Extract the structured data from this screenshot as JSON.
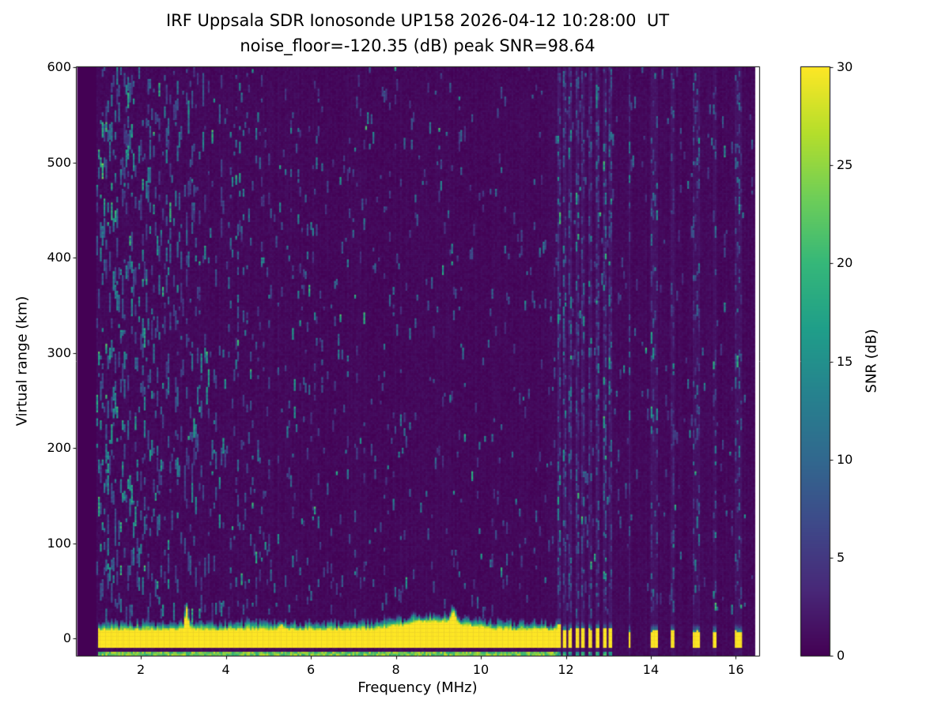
{
  "chart_data": {
    "type": "heatmap",
    "title": "IRF Uppsala SDR Ionosonde UP158 2026-04-12 10:28:00  UT",
    "subtitle": "noise_floor=-120.35 (dB) peak SNR=98.64",
    "station": "IRF Uppsala SDR Ionosonde UP158",
    "timestamp_ut": "2026-04-12 10:28:00",
    "noise_floor_db": -120.35,
    "peak_snr_db": 98.64,
    "xlabel": "Frequency (MHz)",
    "ylabel": "Virtual range (km)",
    "xlim": [
      0.49,
      16.55
    ],
    "ylim": [
      -18,
      600
    ],
    "xticks": [
      2,
      4,
      6,
      8,
      10,
      12,
      14,
      16
    ],
    "yticks": [
      0,
      100,
      200,
      300,
      400,
      500,
      600
    ],
    "grid": false,
    "colorbar": {
      "label": "SNR (dB)",
      "range": [
        0,
        30
      ],
      "ticks": [
        0,
        5,
        10,
        15,
        20,
        25,
        30
      ],
      "colormap": "viridis",
      "colors": [
        "#440154",
        "#482878",
        "#3e4989",
        "#31688e",
        "#26828e",
        "#1f9e89",
        "#35b779",
        "#6ece58",
        "#b5de2b",
        "#fde725"
      ]
    },
    "heatmap": {
      "grid": {
        "nx": 360,
        "ny": 300
      },
      "data_extent_mhz": [
        0.5,
        16.45
      ],
      "noise_extent_mhz": [
        0.95,
        16.45
      ],
      "background_snr_db": [
        0,
        1.5
      ],
      "ground_echo": {
        "freq_range_mhz": [
          1.0,
          11.78
        ],
        "snr_db": 30,
        "half_width_km": 8,
        "lower_edge_km": -9.5,
        "enhancement": {
          "center_mhz": 8.9,
          "sigma_mhz": 0.95,
          "extra_km": 9
        },
        "spikes": [
          {
            "f_mhz": 3.08,
            "extra_km": 22,
            "sigma_mhz": 0.05
          },
          {
            "f_mhz": 9.35,
            "extra_km": 12,
            "sigma_mhz": 0.07
          },
          {
            "f_mhz": 5.3,
            "extra_km": 5,
            "sigma_mhz": 0.05
          }
        ]
      },
      "bottom_trace_km": [
        -17.5,
        -13
      ],
      "interference_mhz": [
        11.86,
        11.98,
        12.12,
        12.27,
        12.42,
        12.58,
        12.74,
        12.9,
        13.05,
        13.5,
        14.02,
        14.12,
        14.52,
        15.02,
        15.12,
        15.5,
        16.02,
        16.12
      ],
      "interference_cluster_max_mhz": 13.2,
      "seed": 20260412
    }
  }
}
